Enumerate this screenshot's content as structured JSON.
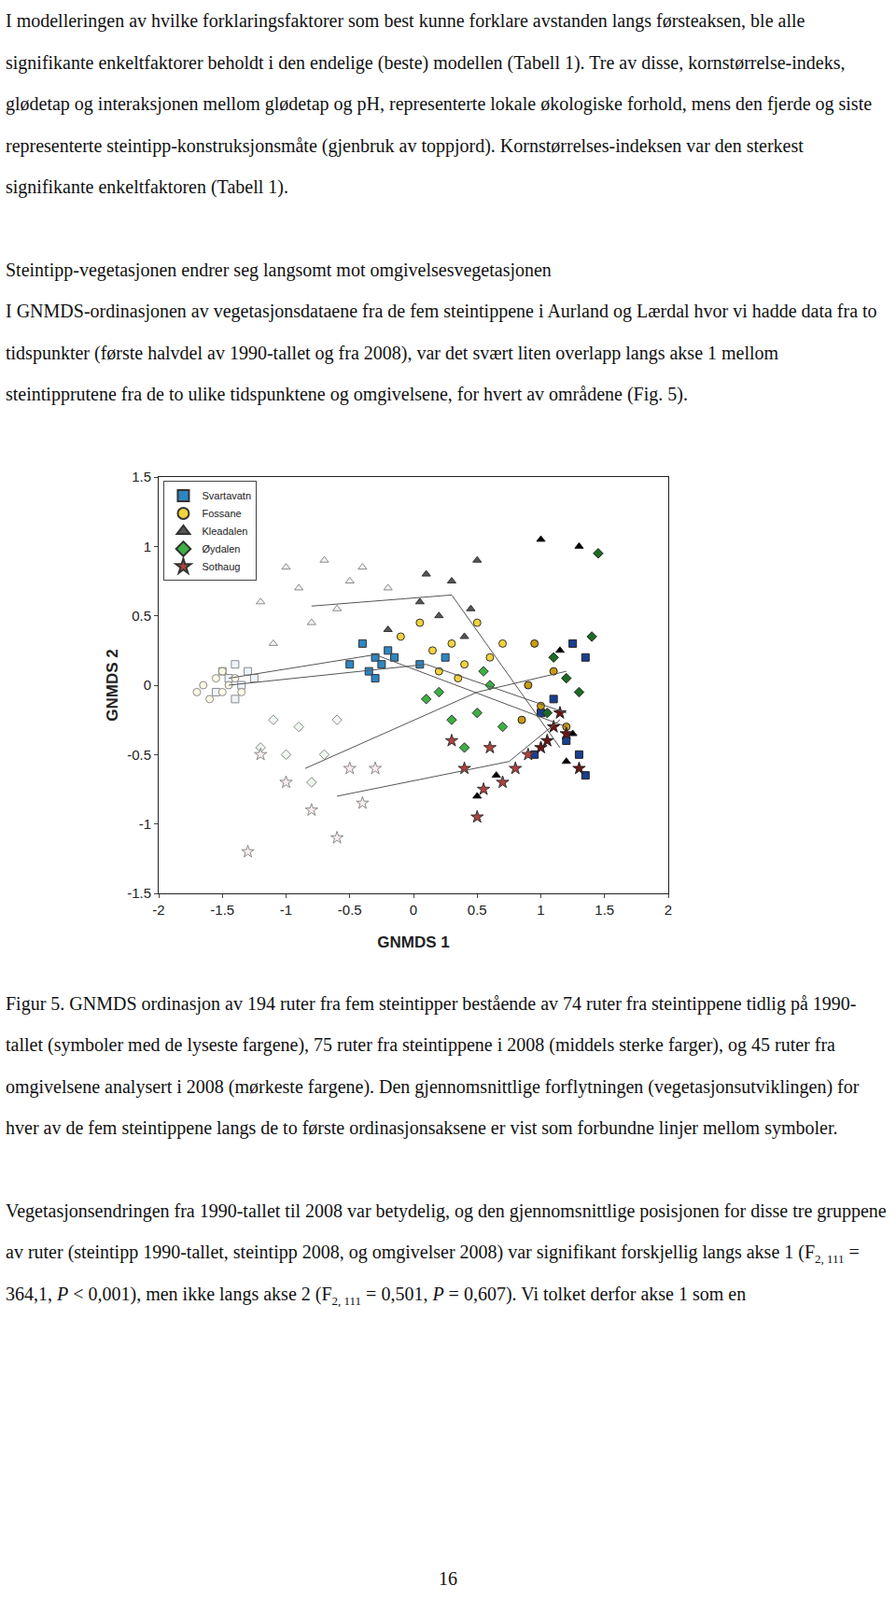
{
  "paragraph_1": "I modelleringen av hvilke forklaringsfaktorer som best kunne forklare avstanden langs førsteaksen, ble alle signifikante enkeltfaktorer beholdt i den endelige (beste) modellen (Tabell 1). Tre av disse, kornstørrelse-indeks, glødetap og interaksjonen mellom glødetap og pH, representerte lokale økologiske forhold, mens den fjerde og siste representerte steintipp-konstruksjonsmåte (gjenbruk av toppjord). Kornstørrelses-indeksen var den sterkest signifikante enkeltfaktoren (Tabell 1).",
  "heading": "Steintipp-vegetasjonen endrer seg langsomt mot omgivelsesvegetasjonen",
  "paragraph_2": "I GNMDS-ordinasjonen av vegetasjonsdataene fra de fem steintippene i Aurland og Lærdal hvor vi hadde data fra to tidspunkter (første halvdel av 1990-tallet og fra 2008), var det svært liten overlapp langs akse 1 mellom steintipprutene fra de to ulike tidspunktene og omgivelsene, for hvert av områdene (Fig. 5).",
  "chart_data": {
    "type": "scatter",
    "xlabel": "GNMDS 1",
    "ylabel": "GNMDS 2",
    "xlim": [
      -2,
      2
    ],
    "ylim": [
      -1.5,
      1.5
    ],
    "xticks": [
      -2,
      -1.5,
      -1,
      -0.5,
      0,
      0.5,
      1,
      1.5,
      2
    ],
    "yticks": [
      -1.5,
      -1,
      -0.5,
      0,
      0.5,
      1,
      1.5
    ],
    "grid": false,
    "legend": "top left",
    "series": [
      {
        "name": "Svartavatn",
        "marker": "square",
        "colors": [
          "#eef4fb",
          "#2e86c1",
          "#1a3f8f"
        ],
        "groups": [
          {
            "x": [
              -1.5,
              -1.45,
              -1.4,
              -1.35,
              -1.3,
              -1.55,
              -1.4,
              -1.25
            ],
            "y": [
              0.1,
              0.05,
              0.15,
              0,
              0.1,
              -0.05,
              -0.1,
              0.05
            ]
          },
          {
            "x": [
              -0.4,
              -0.3,
              -0.25,
              -0.15,
              -0.35,
              -0.2,
              -0.3,
              -0.5,
              0.25,
              0.05
            ],
            "y": [
              0.3,
              0.2,
              0.15,
              0.2,
              0.1,
              0.25,
              0.05,
              0.15,
              0.2,
              0.15
            ]
          },
          {
            "x": [
              1.0,
              1.2,
              1.3,
              1.35,
              1.1,
              1.35,
              1.25,
              0.95
            ],
            "y": [
              -0.2,
              -0.4,
              -0.5,
              -0.65,
              -0.1,
              0.2,
              0.3,
              -0.5
            ]
          }
        ],
        "mean_x": [
          -1.45,
          -0.3,
          1.2
        ],
        "mean_y": [
          0.05,
          0.22,
          -0.3
        ]
      },
      {
        "name": "Fossane",
        "marker": "circle",
        "colors": [
          "#fffbe6",
          "#f2d23c",
          "#c89b12"
        ],
        "groups": [
          {
            "x": [
              -1.65,
              -1.55,
              -1.5,
              -1.45,
              -1.6,
              -1.4,
              -1.35,
              -1.7,
              -1.5
            ],
            "y": [
              0,
              0.05,
              -0.05,
              0,
              -0.1,
              0.05,
              -0.05,
              -0.05,
              0.1
            ]
          },
          {
            "x": [
              0.05,
              0.15,
              0.3,
              0.5,
              0.2,
              0.4,
              0.6,
              0.35,
              -0.1,
              0.7
            ],
            "y": [
              0.45,
              0.25,
              0.3,
              0.45,
              0.1,
              0.15,
              0.2,
              0.05,
              0.35,
              0.3
            ]
          },
          {
            "x": [
              0.9,
              1.0,
              1.1,
              0.95,
              1.2,
              0.85
            ],
            "y": [
              0,
              -0.15,
              0.1,
              0.3,
              -0.3,
              -0.25
            ]
          }
        ],
        "mean_x": [
          -1.45,
          0.1,
          1.2
        ],
        "mean_y": [
          0,
          0.15,
          -0.2
        ]
      },
      {
        "name": "Kleadalen",
        "marker": "triangle-up",
        "colors": [
          "#f4f4f4",
          "#555555",
          "#000000"
        ],
        "groups": [
          {
            "x": [
              -1.2,
              -1.0,
              -0.9,
              -0.7,
              -0.5,
              -0.4,
              -0.6,
              -0.8,
              -1.1,
              -0.2
            ],
            "y": [
              0.6,
              0.85,
              0.7,
              0.9,
              0.75,
              0.85,
              0.55,
              0.45,
              0.3,
              0.7
            ]
          },
          {
            "x": [
              0.1,
              0.3,
              0.45,
              0.2,
              0.5,
              0.05,
              -0.2,
              0.4
            ],
            "y": [
              0.8,
              0.75,
              0.55,
              0.5,
              0.9,
              0.6,
              0.4,
              0.35
            ]
          },
          {
            "x": [
              1.0,
              1.3,
              1.15,
              1.25,
              0.5,
              0.65,
              1.2
            ],
            "y": [
              1.05,
              1.0,
              0.25,
              -0.35,
              -0.8,
              -0.65,
              -0.55
            ]
          }
        ],
        "mean_x": [
          -0.8,
          0.3,
          1.15
        ],
        "mean_y": [
          0.57,
          0.65,
          -0.45
        ]
      },
      {
        "name": "Øydalen",
        "marker": "diamond",
        "colors": [
          "#eef8ee",
          "#3cb043",
          "#1d6b24"
        ],
        "groups": [
          {
            "x": [
              -1.1,
              -1.0,
              -0.9,
              -0.7,
              -0.6,
              -1.2,
              -0.8
            ],
            "y": [
              -0.25,
              -0.5,
              -0.3,
              -0.5,
              -0.25,
              -0.45,
              -0.7
            ]
          },
          {
            "x": [
              0.1,
              0.3,
              0.5,
              0.6,
              0.4,
              0.7,
              0.55,
              0.2
            ],
            "y": [
              -0.1,
              -0.25,
              -0.2,
              0,
              -0.45,
              -0.3,
              0.1,
              -0.05
            ]
          },
          {
            "x": [
              1.1,
              1.2,
              1.4,
              1.45,
              1.05,
              1.3
            ],
            "y": [
              0.2,
              0.05,
              0.35,
              0.95,
              -0.2,
              -0.05
            ]
          }
        ],
        "mean_x": [
          -0.85,
          0.5,
          1.2
        ],
        "mean_y": [
          -0.6,
          -0.05,
          0.1
        ]
      },
      {
        "name": "Sothaug",
        "marker": "star",
        "colors": [
          "#fbeeee",
          "#b0413e",
          "#6e1414"
        ],
        "groups": [
          {
            "x": [
              -1.2,
              -1.0,
              -0.8,
              -0.6,
              -0.4,
              -0.3,
              -1.3,
              -0.5
            ],
            "y": [
              -0.5,
              -0.7,
              -0.9,
              -1.1,
              -0.85,
              -0.6,
              -1.2,
              -0.6
            ]
          },
          {
            "x": [
              0.4,
              0.6,
              0.7,
              0.8,
              0.5,
              0.9,
              0.55,
              0.3
            ],
            "y": [
              -0.6,
              -0.45,
              -0.7,
              -0.6,
              -0.95,
              -0.5,
              -0.75,
              -0.4
            ]
          },
          {
            "x": [
              1.0,
              1.1,
              1.2,
              1.15,
              1.3,
              1.05
            ],
            "y": [
              -0.45,
              -0.3,
              -0.35,
              -0.2,
              -0.6,
              -0.4
            ]
          }
        ],
        "mean_x": [
          -0.6,
          0.75,
          1.15
        ],
        "mean_y": [
          -0.8,
          -0.55,
          -0.25
        ]
      }
    ]
  },
  "caption": "Figur 5. GNMDS ordinasjon av 194 ruter fra fem steintipper bestående av 74 ruter fra steintippene tidlig på 1990-tallet (symboler med de lyseste fargene), 75 ruter fra steintippene i 2008 (middels sterke farger), og 45 ruter fra omgivelsene analysert i 2008 (mørkeste fargene). Den gjennomsnittlige forflytningen (vegetasjonsutviklingen) for hver av de fem steintippene langs de to første ordinasjonsaksene er vist som forbundne linjer mellom symboler.",
  "paragraph_3": [
    {
      "t": "Vegetasjonsendringen fra 1990-tallet til 2008 var betydelig, og den gjennomsnittlige posisjonen for disse tre gruppene av ruter (steintipp 1990-tallet, steintipp 2008, og omgivelser 2008) var signifikant forskjellig langs akse 1 (F"
    },
    {
      "t": "2, 111",
      "sub": true
    },
    {
      "t": " = 364,1, "
    },
    {
      "t": "P",
      "italic": true
    },
    {
      "t": " < 0,001), men ikke langs akse 2 (F"
    },
    {
      "t": "2, 111",
      "sub": true
    },
    {
      "t": " = 0,501, "
    },
    {
      "t": "P",
      "italic": true
    },
    {
      "t": " = 0,607). Vi tolket derfor akse 1 som en"
    }
  ],
  "page_number": "16"
}
